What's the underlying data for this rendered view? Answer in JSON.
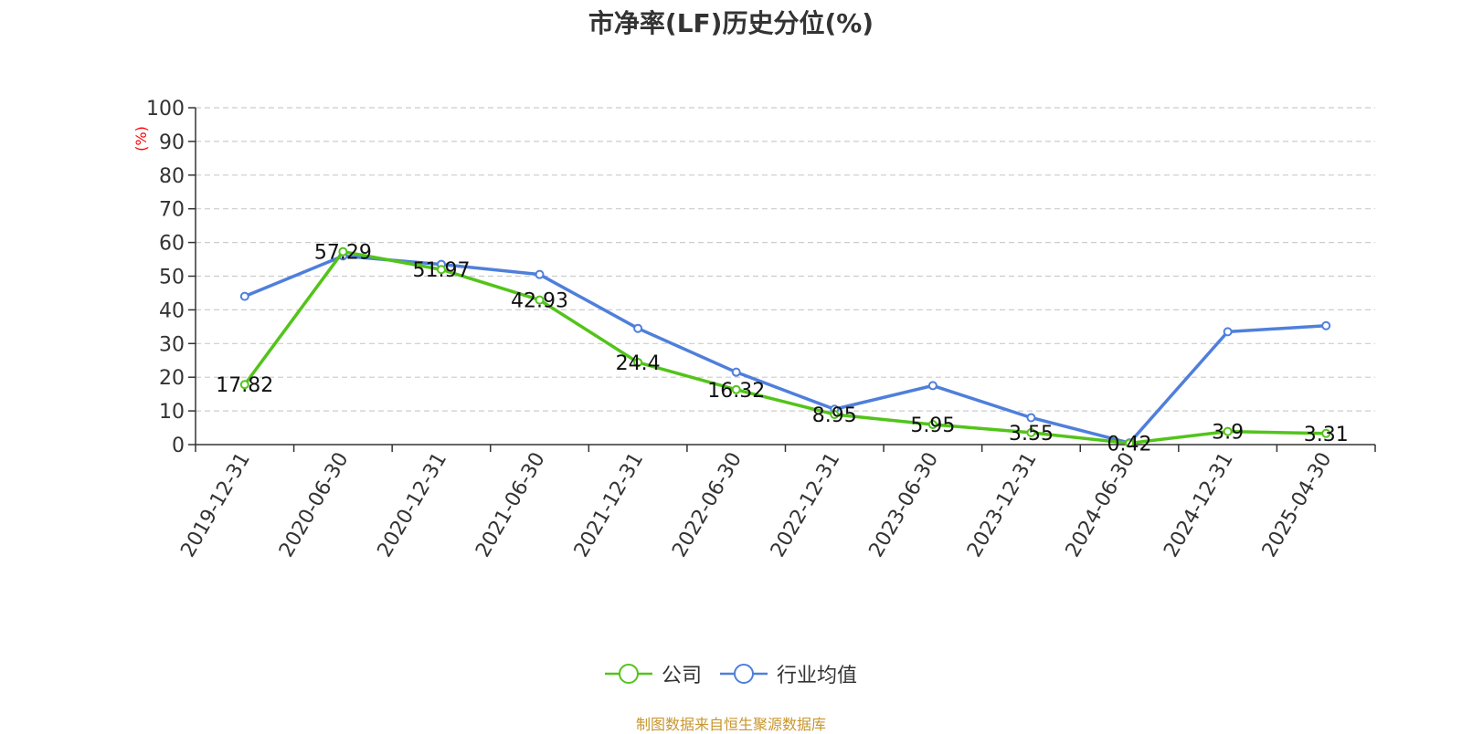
{
  "chart_data": {
    "type": "line",
    "title": "市净率(LF)历史分位(%)",
    "ylabel": "(%)",
    "ylim": [
      0,
      100
    ],
    "yticks": [
      0,
      10,
      20,
      30,
      40,
      50,
      60,
      70,
      80,
      90,
      100
    ],
    "grid": true,
    "legend_position": "bottom",
    "categories": [
      "2019-12-31",
      "2020-06-30",
      "2020-12-31",
      "2021-06-30",
      "2021-12-31",
      "2022-06-30",
      "2022-12-31",
      "2023-06-30",
      "2023-12-31",
      "2024-06-30",
      "2024-12-31",
      "2025-04-30"
    ],
    "series": [
      {
        "name": "公司",
        "color": "#52c41a",
        "values": [
          17.82,
          57.29,
          51.97,
          42.93,
          24.4,
          16.32,
          8.95,
          5.95,
          3.55,
          0.42,
          3.9,
          3.31
        ],
        "labels": [
          "17.82",
          "57.29",
          "51.97",
          "42.93",
          "24.4",
          "16.32",
          "8.95",
          "5.95",
          "3.55",
          "0.42",
          "3.9",
          "3.31"
        ]
      },
      {
        "name": "行业均值",
        "color": "#4f7fdb",
        "values": [
          44,
          56,
          53.5,
          50.5,
          34.5,
          21.5,
          10.5,
          17.5,
          8,
          0.5,
          33.5,
          35.3
        ]
      }
    ]
  },
  "footer": {
    "source": "制图数据来自恒生聚源数据库"
  }
}
